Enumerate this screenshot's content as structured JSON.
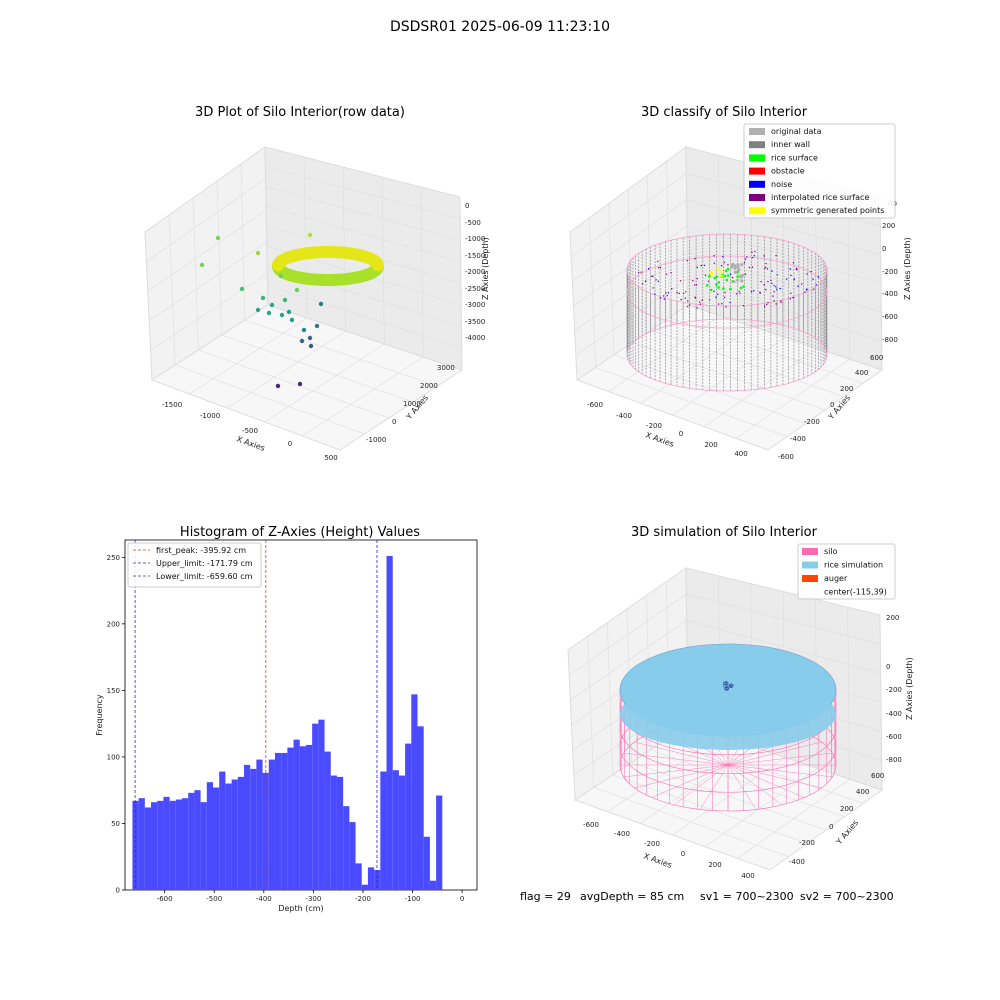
{
  "suptitle": "DSDSR01 2025-06-09 11:23:10",
  "status": {
    "flag": "flag = 29",
    "avg_depth": "avgDepth = 85 cm",
    "sv1": "sv1 = 700~2300",
    "sv2": "sv2 = 700~2300"
  },
  "colors": {
    "histogram_bar": "#4a4aff",
    "first_peak": "#e03030",
    "limit": "#2b2bd0",
    "silo": "#ff69b4",
    "rice_simulation": "#87cceb",
    "auger": "#ff4500",
    "original_data": "#b0b0b0",
    "inner_wall": "#808080",
    "rice_surface": "#00ff00",
    "obstacle": "#ff0000",
    "noise": "#0000ff",
    "interpolated_rice_surface": "#800080",
    "symmetric_generated_points": "#ffff00"
  },
  "raw_plot": {
    "title": "3D Plot of Silo Interior(row data)",
    "xlabel": "X Axies",
    "ylabel": "Y Axies",
    "zlabel": "Z Axies (Depth)",
    "xticks": [
      "-1500",
      "-1000",
      "-500",
      "0",
      "500"
    ],
    "yticks": [
      "-1000",
      "0",
      "1000",
      "2000",
      "3000"
    ],
    "zticks": [
      "0",
      "-500",
      "-1000",
      "-1500",
      "-2000",
      "-2500",
      "-3000",
      "-3500",
      "-4000"
    ]
  },
  "classify_plot": {
    "title": "3D classify of Silo Interior",
    "xlabel": "X Axies",
    "ylabel": "Y Axies",
    "zlabel": "Z Axies (Depth)",
    "xticks": [
      "-600",
      "-400",
      "-200",
      "0",
      "200",
      "400"
    ],
    "yticks": [
      "-600",
      "-400",
      "-200",
      "0",
      "200",
      "400",
      "600"
    ],
    "zticks": [
      "200",
      "0",
      "-200",
      "-400",
      "-600",
      "-800"
    ],
    "zticks_extra": "00",
    "legend": [
      {
        "label": "original data",
        "color": "#b0b0b0"
      },
      {
        "label": "inner wall",
        "color": "#808080"
      },
      {
        "label": "rice surface",
        "color": "#00ff00"
      },
      {
        "label": "obstacle",
        "color": "#ff0000"
      },
      {
        "label": "noise",
        "color": "#0000ff"
      },
      {
        "label": "interpolated rice surface",
        "color": "#800080"
      },
      {
        "label": "symmetric generated points",
        "color": "#ffff00"
      }
    ]
  },
  "sim_plot": {
    "title": "3D simulation of Silo Interior",
    "xlabel": "X Axies",
    "ylabel": "Y Axies",
    "zlabel": "Z Axies (Depth)",
    "xticks": [
      "-600",
      "-400",
      "-200",
      "0",
      "200",
      "400"
    ],
    "yticks": [
      "-400",
      "-200",
      "0",
      "200",
      "400",
      "600"
    ],
    "zticks": [
      "200",
      "0",
      "-200",
      "-400",
      "-600",
      "-800"
    ],
    "legend": [
      {
        "label": "silo",
        "color": "#ff69b4"
      },
      {
        "label": "rice simulation",
        "color": "#87cceb"
      },
      {
        "label": "auger",
        "color": "#ff4500"
      },
      {
        "label": "center(-115,39)",
        "color": ""
      }
    ]
  },
  "chart_data": {
    "type": "bar",
    "title": "Histogram of Z-Axies (Height) Values",
    "xlabel": "Depth (cm)",
    "ylabel": "Frequency",
    "xlim": [
      -680,
      30
    ],
    "ylim": [
      0,
      263
    ],
    "xticks": [
      -600,
      -500,
      -400,
      -300,
      -200,
      -100,
      0
    ],
    "yticks": [
      0,
      50,
      100,
      150,
      200,
      250
    ],
    "bin_width": 12.5,
    "bin_start": -665,
    "values": [
      67,
      69,
      62,
      66,
      67,
      70,
      67,
      68,
      69,
      73,
      75,
      66,
      81,
      77,
      89,
      80,
      83,
      85,
      94,
      91,
      98,
      88,
      98,
      103,
      103,
      107,
      113,
      108,
      109,
      125,
      128,
      104,
      86,
      85,
      63,
      51,
      20,
      4,
      17,
      15,
      89,
      251,
      90,
      86,
      110,
      147,
      123,
      40,
      7,
      71
    ],
    "lines": [
      {
        "label": "first_peak: -395.92 cm",
        "x": -395.92,
        "color": "#e03030"
      },
      {
        "label": "Upper_limit: -171.79 cm",
        "x": -171.79,
        "color": "#2b2bd0"
      },
      {
        "label": "Lower_limit: -659.60 cm",
        "x": -659.6,
        "color": "#2b2bd0"
      }
    ]
  }
}
